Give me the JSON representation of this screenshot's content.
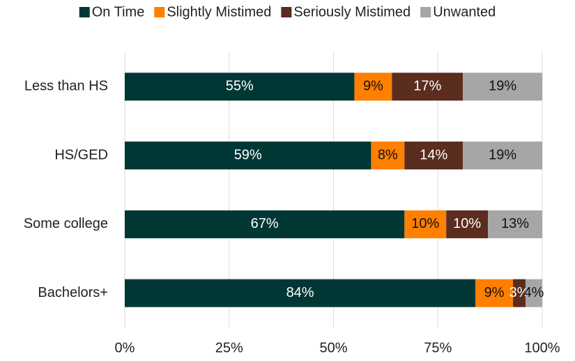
{
  "chart_data": {
    "type": "stacked_barh",
    "categories": [
      "Less than HS",
      "HS/GED",
      "Some college",
      "Bachelors+"
    ],
    "series": [
      {
        "name": "On Time",
        "color": "#003735",
        "values": [
          55,
          59,
          67,
          84
        ],
        "value_labels": [
          "55%",
          "59%",
          "67%",
          "84%"
        ]
      },
      {
        "name": "Slightly Mistimed",
        "color": "#ff7f00",
        "values": [
          9,
          8,
          10,
          9
        ],
        "value_labels": [
          "9%",
          "8%",
          "10%",
          "9%"
        ]
      },
      {
        "name": "Seriously Mistimed",
        "color": "#5a2d1e",
        "values": [
          17,
          14,
          10,
          3
        ],
        "value_labels": [
          "17%",
          "14%",
          "10%",
          "3%"
        ]
      },
      {
        "name": "Unwanted",
        "color": "#a6a6a6",
        "values": [
          19,
          19,
          13,
          4
        ],
        "value_labels": [
          "19%",
          "19%",
          "13%",
          "4%"
        ]
      }
    ],
    "xlim": [
      0,
      100
    ],
    "xticks": [
      {
        "value": 0,
        "label": "0%"
      },
      {
        "value": 25,
        "label": "25%"
      },
      {
        "value": 50,
        "label": "50%"
      },
      {
        "value": 75,
        "label": "75%"
      },
      {
        "value": 100,
        "label": "100%"
      }
    ],
    "grid": true,
    "legend": "top"
  }
}
